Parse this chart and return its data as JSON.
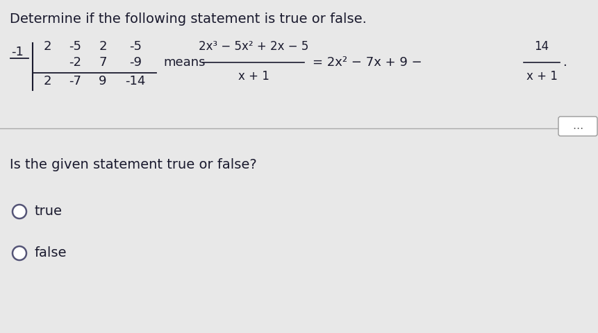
{
  "bg_color": "#e8e8e8",
  "title": "Determine if the following statement is true or false.",
  "title_fontsize": 14,
  "neg1_label": "-1",
  "top_nums": [
    "2",
    "-5",
    "2",
    "-5"
  ],
  "mid_nums": [
    "-2",
    "7",
    "-9"
  ],
  "bot_nums": [
    "2",
    "-7",
    "9",
    "-14"
  ],
  "means_text": "means",
  "fraction_num": "2x³ − 5x² + 2x − 5",
  "fraction_den": "x + 1",
  "equals_rhs": "= 2x² − 7x + 9 −",
  "frac2_num": "14",
  "frac2_den": "x + 1",
  "period": ".",
  "question_text": "Is the given statement true or false?",
  "option_true": "true",
  "option_false": "false",
  "sd_fontsize": 13,
  "body_fontsize": 13,
  "divider_color": "#aaaaaa",
  "text_color": "#1a1a2e",
  "radio_color": "#555577"
}
